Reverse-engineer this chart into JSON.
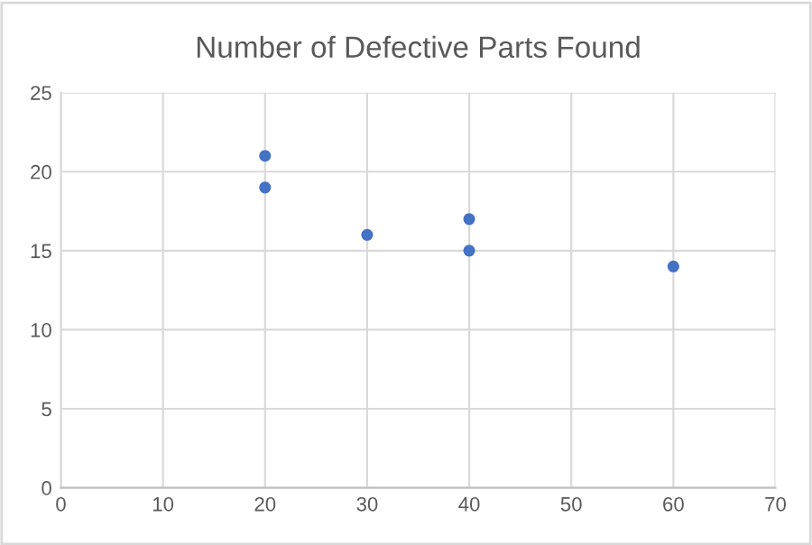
{
  "chart_data": {
    "type": "scatter",
    "title": "Number of Defective Parts Found",
    "x": [
      20,
      20,
      30,
      40,
      40,
      60
    ],
    "series": [
      {
        "color": "#4472c4",
        "values": [
          21,
          19,
          16,
          17,
          15,
          14
        ]
      }
    ],
    "xlim": [
      0,
      70
    ],
    "xticks": [
      0,
      10,
      20,
      30,
      40,
      50,
      60,
      70
    ],
    "ylim": [
      0,
      25
    ],
    "yticks": [
      0,
      5,
      10,
      15,
      20,
      25
    ],
    "grid": true,
    "marker": "circle"
  }
}
